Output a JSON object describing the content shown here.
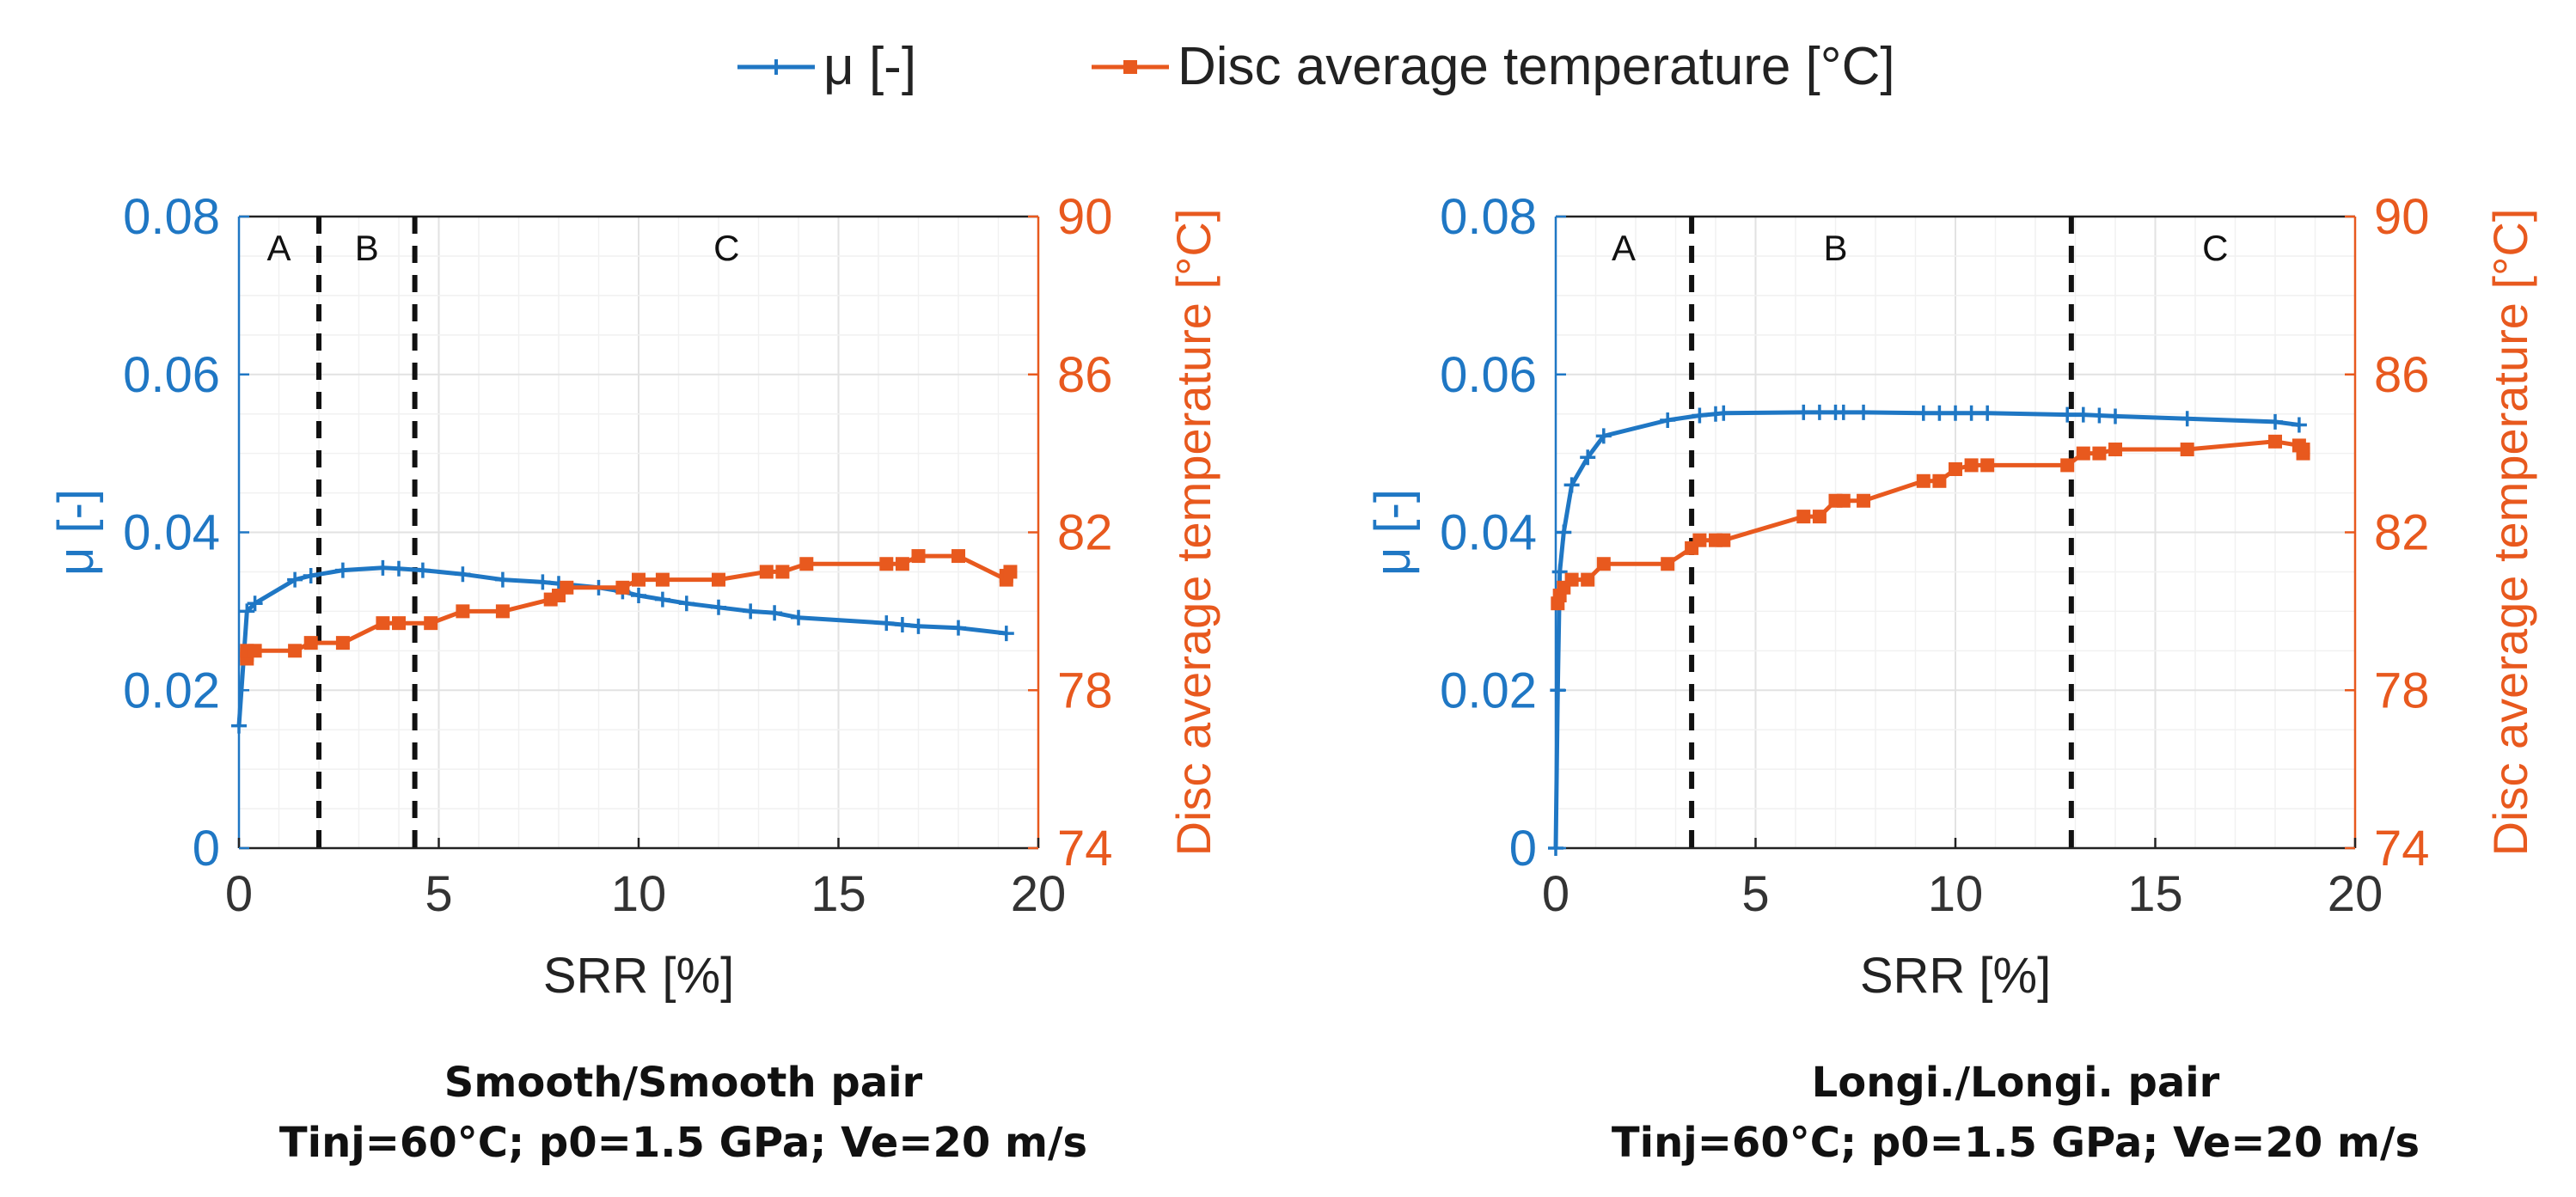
{
  "legend": {
    "items": [
      {
        "label": "μ [-]",
        "color": "#1f77c4",
        "marker": "plus"
      },
      {
        "label": "Disc average temperature [°C]",
        "color": "#e8591e",
        "marker": "square"
      }
    ]
  },
  "chart_data": [
    {
      "type": "line",
      "xlabel": "SRR [%]",
      "ylabel": "μ [-]",
      "y2label": "Disc average temperature [°C]",
      "xlim": [
        0,
        20
      ],
      "ylim": [
        0,
        0.08
      ],
      "y2lim": [
        74,
        90
      ],
      "xticks": [
        "0",
        "5",
        "10",
        "15",
        "20"
      ],
      "yticks": [
        "0",
        "0.02",
        "0.04",
        "0.06",
        "0.08"
      ],
      "y2ticks": [
        "74",
        "78",
        "82",
        "86",
        "90"
      ],
      "grid": true,
      "regions": [
        {
          "label": "A",
          "x": 1.0
        },
        {
          "label": "B",
          "x": 3.2
        },
        {
          "label": "C",
          "x": 12.2
        }
      ],
      "dividers": [
        2.0,
        4.4
      ],
      "caption": [
        "Smooth/Smooth pair",
        "Tinj=60°C; p0=1.5 GPa; Ve=20 m/s"
      ],
      "series": [
        {
          "name": "μ [-]",
          "axis": "left",
          "color": "#1f77c4",
          "x": [
            0,
            0.2,
            0.4,
            1.4,
            1.8,
            2.6,
            3.6,
            4.0,
            4.6,
            5.6,
            6.6,
            7.6,
            8.0,
            9.0,
            9.6,
            10.0,
            10.6,
            11.2,
            12.0,
            12.8,
            13.4,
            14.0,
            16.2,
            16.6,
            17.0,
            18.0,
            19.2
          ],
          "y": [
            0.0155,
            0.03,
            0.031,
            0.034,
            0.0345,
            0.0352,
            0.0355,
            0.0354,
            0.0352,
            0.0347,
            0.034,
            0.0337,
            0.0335,
            0.033,
            0.0325,
            0.032,
            0.0315,
            0.031,
            0.0305,
            0.03,
            0.0298,
            0.0292,
            0.0285,
            0.0283,
            0.0281,
            0.0279,
            0.0272
          ]
        },
        {
          "name": "Disc average temperature [°C]",
          "axis": "right",
          "color": "#e8591e",
          "x": [
            0.2,
            0.2,
            0.2,
            0.4,
            1.4,
            1.8,
            2.6,
            3.6,
            4.0,
            4.8,
            5.6,
            6.6,
            7.8,
            8.0,
            8.2,
            9.6,
            10.0,
            10.6,
            12.0,
            13.2,
            13.6,
            14.2,
            16.2,
            16.6,
            17.0,
            18.0,
            19.2,
            19.2,
            19.3
          ],
          "y": [
            78.8,
            78.9,
            79.0,
            79.0,
            79.0,
            79.2,
            79.2,
            79.7,
            79.7,
            79.7,
            80.0,
            80.0,
            80.3,
            80.4,
            80.6,
            80.6,
            80.8,
            80.8,
            80.8,
            81.0,
            81.0,
            81.2,
            81.2,
            81.2,
            81.4,
            81.4,
            80.8,
            80.9,
            81.0
          ]
        }
      ]
    },
    {
      "type": "line",
      "xlabel": "SRR [%]",
      "ylabel": "μ [-]",
      "y2label": "Disc average temperature [°C]",
      "xlim": [
        0,
        20
      ],
      "ylim": [
        0,
        0.08
      ],
      "y2lim": [
        74,
        90
      ],
      "xticks": [
        "0",
        "5",
        "10",
        "15",
        "20"
      ],
      "yticks": [
        "0",
        "0.02",
        "0.04",
        "0.06",
        "0.08"
      ],
      "y2ticks": [
        "74",
        "78",
        "82",
        "86",
        "90"
      ],
      "grid": true,
      "regions": [
        {
          "label": "A",
          "x": 1.7
        },
        {
          "label": "B",
          "x": 7.0
        },
        {
          "label": "C",
          "x": 16.5
        }
      ],
      "dividers": [
        3.4,
        12.9
      ],
      "caption": [
        "Longi./Longi. pair",
        "Tinj=60°C; p0=1.5 GPa; Ve=20 m/s"
      ],
      "series": [
        {
          "name": "μ [-]",
          "axis": "left",
          "color": "#1f77c4",
          "x": [
            0,
            0.05,
            0.1,
            0.2,
            0.4,
            0.8,
            1.2,
            2.8,
            3.6,
            4.0,
            4.2,
            6.2,
            6.6,
            7.0,
            7.2,
            7.7,
            9.2,
            9.6,
            10.0,
            10.4,
            10.8,
            12.8,
            13.2,
            13.6,
            14.0,
            15.8,
            18.0,
            18.6
          ],
          "y": [
            0.0,
            0.02,
            0.035,
            0.04,
            0.046,
            0.0495,
            0.0522,
            0.0542,
            0.0548,
            0.055,
            0.0551,
            0.0552,
            0.0552,
            0.0552,
            0.0552,
            0.0552,
            0.0551,
            0.0551,
            0.0551,
            0.0551,
            0.0551,
            0.0549,
            0.0549,
            0.0548,
            0.0547,
            0.0544,
            0.054,
            0.0536
          ]
        },
        {
          "name": "Disc average temperature [°C]",
          "axis": "right",
          "color": "#e8591e",
          "x": [
            0.05,
            0.1,
            0.2,
            0.4,
            0.8,
            1.2,
            2.8,
            3.4,
            3.6,
            4.0,
            4.2,
            6.2,
            6.6,
            7.0,
            7.2,
            7.7,
            9.2,
            9.6,
            10.0,
            10.4,
            10.8,
            12.8,
            13.2,
            13.6,
            14.0,
            15.8,
            18.0,
            18.6,
            18.7,
            18.7
          ],
          "y": [
            80.2,
            80.4,
            80.6,
            80.8,
            80.8,
            81.2,
            81.2,
            81.6,
            81.8,
            81.8,
            81.8,
            82.4,
            82.4,
            82.8,
            82.8,
            82.8,
            83.3,
            83.3,
            83.6,
            83.7,
            83.7,
            83.7,
            84.0,
            84.0,
            84.1,
            84.1,
            84.3,
            84.2,
            84.0,
            84.1
          ]
        }
      ]
    }
  ]
}
